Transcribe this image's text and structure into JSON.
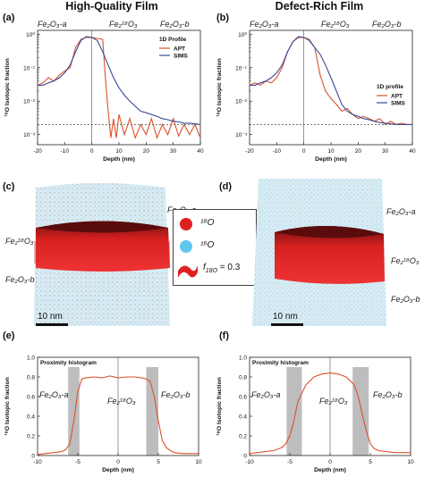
{
  "figure": {
    "col_titles": [
      "High-Quality Film",
      "Defect-Rich Film"
    ],
    "panel_labels": [
      "(a)",
      "(b)",
      "(c)",
      "(d)",
      "(e)",
      "(f)"
    ],
    "phase_labels": {
      "a": "Fe₂O₃-a",
      "mid": "Fe₂¹⁸O₃",
      "b": "Fe₂O₃-b"
    },
    "colors": {
      "apt": "#d9532a",
      "sims": "#3a4a9a",
      "hist": "#d9532a",
      "shade": "#bdbdbd",
      "o18": "#e02020",
      "o16": "#5fc8ef"
    },
    "tomo": {
      "scale_label": "10 nm",
      "legend": {
        "o18": "¹⁸O",
        "o16": "¹⁶O",
        "iso": "f",
        "iso_sub": "18O",
        "iso_val": "= 0.3"
      }
    }
  },
  "chart_data": [
    {
      "id": "a",
      "type": "line",
      "xlabel": "Depth (nm)",
      "ylabel": "¹⁸O Isotopic fraction",
      "xlim": [
        -20,
        40
      ],
      "xticks": [
        -20,
        -10,
        0,
        10,
        20,
        30,
        40
      ],
      "ylim": [
        0.0005,
        1.3
      ],
      "yscale": "log",
      "yticks": [
        1,
        0.1,
        0.01,
        0.001
      ],
      "ytick_labels": [
        "10⁰",
        "10⁻¹",
        "10⁻²",
        "10⁻³"
      ],
      "legend_title": "1D Profile",
      "legend_position": "upper-right",
      "dashed_line_y": 0.002,
      "series": [
        {
          "name": "APT",
          "x": [
            -20,
            -18,
            -16,
            -14,
            -12,
            -10,
            -8,
            -6,
            -4,
            -2,
            0,
            2,
            4,
            5,
            6,
            7,
            8,
            9,
            10,
            12,
            14,
            16,
            18,
            20,
            22,
            24,
            26,
            28,
            30,
            32,
            34,
            36,
            38,
            40
          ],
          "y": [
            0.03,
            0.035,
            0.05,
            0.04,
            0.06,
            0.08,
            0.1,
            0.4,
            0.7,
            0.8,
            0.8,
            0.75,
            0.7,
            0.05,
            0.005,
            0.0008,
            0.003,
            0.0008,
            0.004,
            0.001,
            0.003,
            0.0008,
            0.002,
            0.001,
            0.003,
            0.0008,
            0.002,
            0.001,
            0.003,
            0.0009,
            0.002,
            0.001,
            0.002,
            0.0008
          ]
        },
        {
          "name": "SIMS",
          "x": [
            -20,
            -18,
            -16,
            -14,
            -12,
            -10,
            -8,
            -6,
            -4,
            -2,
            0,
            2,
            4,
            6,
            8,
            10,
            12,
            14,
            16,
            18,
            20,
            22,
            24,
            26,
            28,
            30,
            32,
            34,
            36,
            38,
            40
          ],
          "y": [
            0.03,
            0.03,
            0.035,
            0.04,
            0.05,
            0.07,
            0.12,
            0.3,
            0.65,
            0.85,
            0.8,
            0.65,
            0.3,
            0.12,
            0.05,
            0.025,
            0.015,
            0.01,
            0.007,
            0.005,
            0.0045,
            0.004,
            0.0035,
            0.003,
            0.0028,
            0.0025,
            0.0024,
            0.0022,
            0.0022,
            0.0021,
            0.002
          ]
        }
      ]
    },
    {
      "id": "b",
      "type": "line",
      "xlabel": "Depth (nm)",
      "ylabel": "¹⁸O Isotopic fraction",
      "xlim": [
        -20,
        40
      ],
      "xticks": [
        -20,
        -10,
        0,
        10,
        20,
        30,
        40
      ],
      "ylim": [
        0.0005,
        1.3
      ],
      "yscale": "log",
      "yticks": [
        1,
        0.1,
        0.01,
        0.001
      ],
      "ytick_labels": [
        "10⁰",
        "10⁻¹",
        "10⁻²",
        "10⁻³"
      ],
      "legend_title": "1D profile",
      "legend_position": "right",
      "dashed_line_y": 0.002,
      "series": [
        {
          "name": "APT",
          "x": [
            -20,
            -18,
            -16,
            -14,
            -12,
            -10,
            -8,
            -6,
            -4,
            -2,
            0,
            2,
            4,
            6,
            8,
            10,
            12,
            14,
            16,
            18,
            20,
            22,
            24,
            26,
            28,
            30,
            32,
            34,
            36,
            38,
            40
          ],
          "y": [
            0.03,
            0.035,
            0.03,
            0.04,
            0.035,
            0.05,
            0.1,
            0.3,
            0.6,
            0.8,
            0.8,
            0.7,
            0.4,
            0.06,
            0.02,
            0.012,
            0.008,
            0.005,
            0.006,
            0.004,
            0.003,
            0.0035,
            0.003,
            0.0025,
            0.003,
            0.002,
            0.0025,
            0.002,
            0.0022,
            0.002,
            0.002
          ]
        },
        {
          "name": "SIMS",
          "x": [
            -20,
            -18,
            -16,
            -14,
            -12,
            -10,
            -8,
            -6,
            -4,
            -2,
            0,
            2,
            4,
            6,
            8,
            10,
            12,
            14,
            16,
            18,
            20,
            22,
            24,
            26,
            28,
            30,
            32,
            34,
            36,
            38,
            40
          ],
          "y": [
            0.03,
            0.03,
            0.035,
            0.04,
            0.05,
            0.07,
            0.12,
            0.3,
            0.6,
            0.85,
            0.8,
            0.65,
            0.4,
            0.25,
            0.12,
            0.05,
            0.02,
            0.008,
            0.005,
            0.004,
            0.0035,
            0.003,
            0.0028,
            0.0025,
            0.0023,
            0.0022,
            0.0021,
            0.002,
            0.002,
            0.002,
            0.002
          ]
        }
      ]
    },
    {
      "id": "e",
      "type": "line",
      "xlabel": "Depth (nm)",
      "ylabel": "¹⁸O Isotopic fraction",
      "xlim": [
        -10,
        10
      ],
      "xticks": [
        -10,
        -5,
        0,
        5,
        10
      ],
      "ylim": [
        0,
        1.0
      ],
      "yticks": [
        0,
        0.2,
        0.4,
        0.6,
        0.8,
        1.0
      ],
      "ytick_labels": [
        "0",
        "0.2",
        "0.4",
        "0.6",
        "0.8",
        "1.0"
      ],
      "box_title": "Proximity histogram",
      "shaded_x_ranges": [
        [
          -6.2,
          -4.8
        ],
        [
          3.5,
          5.0
        ]
      ],
      "series": [
        {
          "name": "",
          "x": [
            -10,
            -9,
            -8,
            -7,
            -6.5,
            -6,
            -5.5,
            -5,
            -4.5,
            -4,
            -3,
            -2,
            -1,
            0,
            1,
            2,
            3,
            3.5,
            4,
            4.5,
            5,
            5.5,
            6,
            6.5,
            7,
            8,
            9,
            10
          ],
          "y": [
            0.01,
            0.02,
            0.03,
            0.04,
            0.06,
            0.12,
            0.35,
            0.65,
            0.78,
            0.79,
            0.8,
            0.79,
            0.81,
            0.79,
            0.8,
            0.8,
            0.79,
            0.78,
            0.75,
            0.6,
            0.35,
            0.15,
            0.08,
            0.05,
            0.03,
            0.02,
            0.02,
            0.02
          ]
        }
      ]
    },
    {
      "id": "f",
      "type": "line",
      "xlabel": "Depth (nm)",
      "ylabel": "¹⁸O Isotopic fraction",
      "xlim": [
        -10,
        10
      ],
      "xticks": [
        -10,
        -5,
        0,
        5,
        10
      ],
      "ylim": [
        0,
        1.0
      ],
      "yticks": [
        0,
        0.2,
        0.4,
        0.6,
        0.8,
        1.0
      ],
      "ytick_labels": [
        "0",
        "0.2",
        "0.4",
        "0.6",
        "0.8",
        "1.0"
      ],
      "box_title": "Proximity histogram",
      "shaded_x_ranges": [
        [
          -5.4,
          -3.5
        ],
        [
          2.8,
          4.8
        ]
      ],
      "series": [
        {
          "name": "",
          "x": [
            -10,
            -9,
            -8,
            -7,
            -6,
            -5.5,
            -5,
            -4.5,
            -4,
            -3,
            -2,
            -1,
            0,
            1,
            2,
            3,
            3.5,
            4,
            4.5,
            5,
            5.5,
            6,
            7,
            8,
            9,
            10
          ],
          "y": [
            0.02,
            0.03,
            0.04,
            0.05,
            0.08,
            0.12,
            0.2,
            0.35,
            0.55,
            0.72,
            0.8,
            0.83,
            0.84,
            0.83,
            0.8,
            0.72,
            0.6,
            0.42,
            0.25,
            0.12,
            0.07,
            0.05,
            0.04,
            0.03,
            0.03,
            0.03
          ]
        }
      ]
    }
  ]
}
